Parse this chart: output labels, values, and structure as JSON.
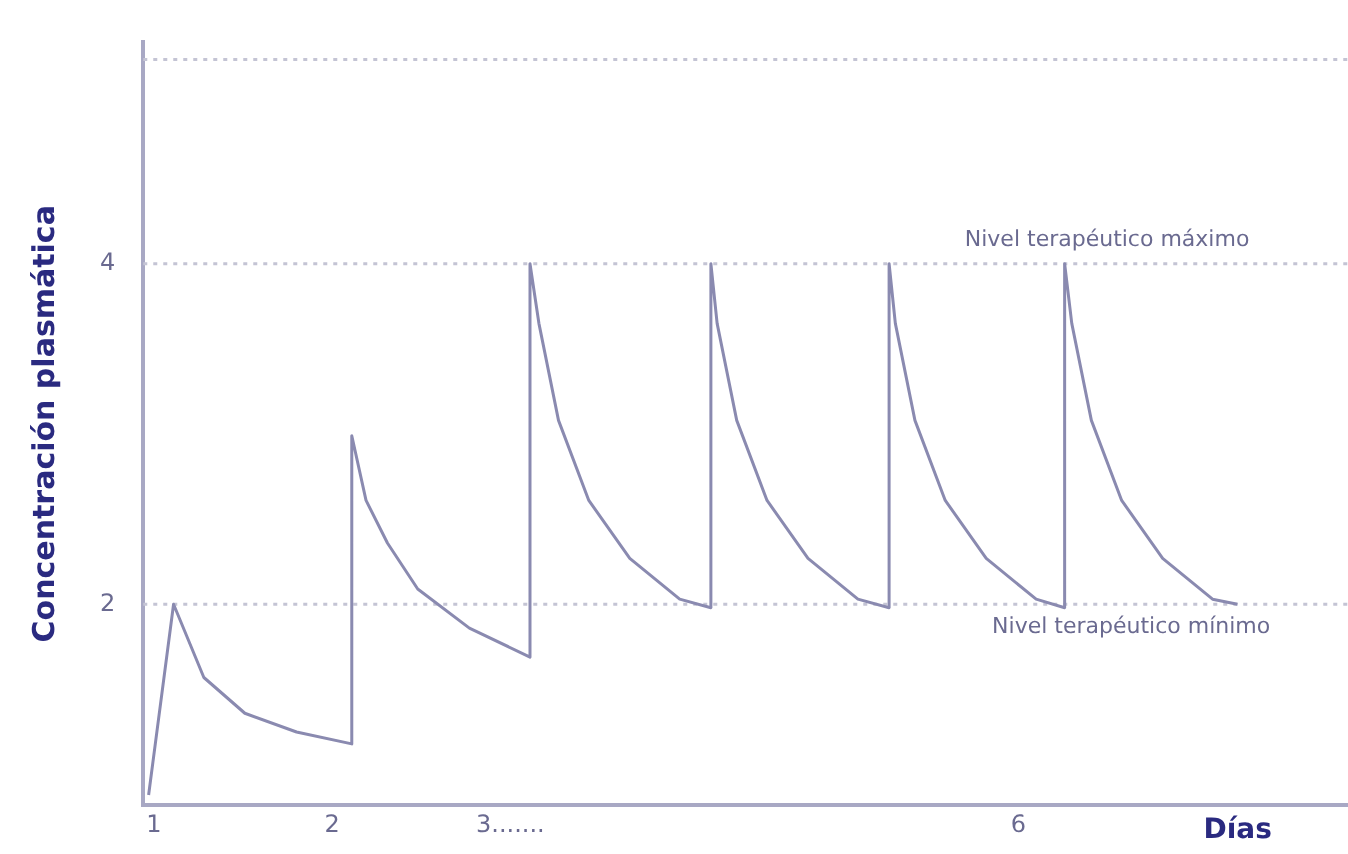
{
  "chart_data": {
    "type": "line",
    "xlabel": "Días",
    "ylabel": "Concentración plasmática",
    "series": [
      {
        "color": "#8a8ab0",
        "x": [
          0.97,
          1.11,
          1.28,
          1.51,
          1.8,
          2.11,
          2.11,
          2.19,
          2.31,
          2.48,
          2.77,
          3.11,
          3.11,
          3.16,
          3.27,
          3.44,
          3.67,
          3.95,
          4.125,
          4.125,
          4.16,
          4.27,
          4.44,
          4.67,
          4.95,
          5.125,
          5.125,
          5.16,
          5.27,
          5.44,
          5.67,
          5.95,
          6.11,
          6.11,
          6.15,
          6.26,
          6.43,
          6.66,
          6.94,
          7.08
        ],
        "values": [
          0.88,
          2,
          1.57,
          1.36,
          1.25,
          1.18,
          2.99,
          2.61,
          2.36,
          2.09,
          1.86,
          1.69,
          4,
          3.65,
          3.08,
          2.61,
          2.27,
          2.03,
          1.98,
          4,
          3.65,
          3.08,
          2.61,
          2.27,
          2.03,
          1.98,
          4,
          3.65,
          3.08,
          2.61,
          2.27,
          2.03,
          1.98,
          4,
          3.65,
          3.08,
          2.61,
          2.27,
          2.03,
          2
        ]
      }
    ],
    "xlim": [
      0.94,
      7.7
    ],
    "ylim": [
      0.82,
      5.3
    ],
    "xticks": [
      1,
      2,
      {
        "value": 3,
        "label": "3......."
      },
      {
        "value": 5.85,
        "label": "6"
      }
    ],
    "yticks": [
      2,
      4
    ],
    "ref_lines": [
      {
        "axis": "y",
        "value": 4,
        "label": "Nivel terapéutico máximo",
        "color": "#c4c4d4",
        "line_style": "dotted"
      },
      {
        "axis": "y",
        "value": 2,
        "label": "Nivel terapéutico mínimo",
        "color": "#c4c4d4",
        "line_style": "dotted"
      },
      {
        "axis": "y",
        "value": 5.2,
        "label": null,
        "color": "#c4c4d4",
        "line_style": "dotted"
      }
    ],
    "grid": false,
    "legend": false,
    "marker": "none",
    "line_style": "solid"
  }
}
